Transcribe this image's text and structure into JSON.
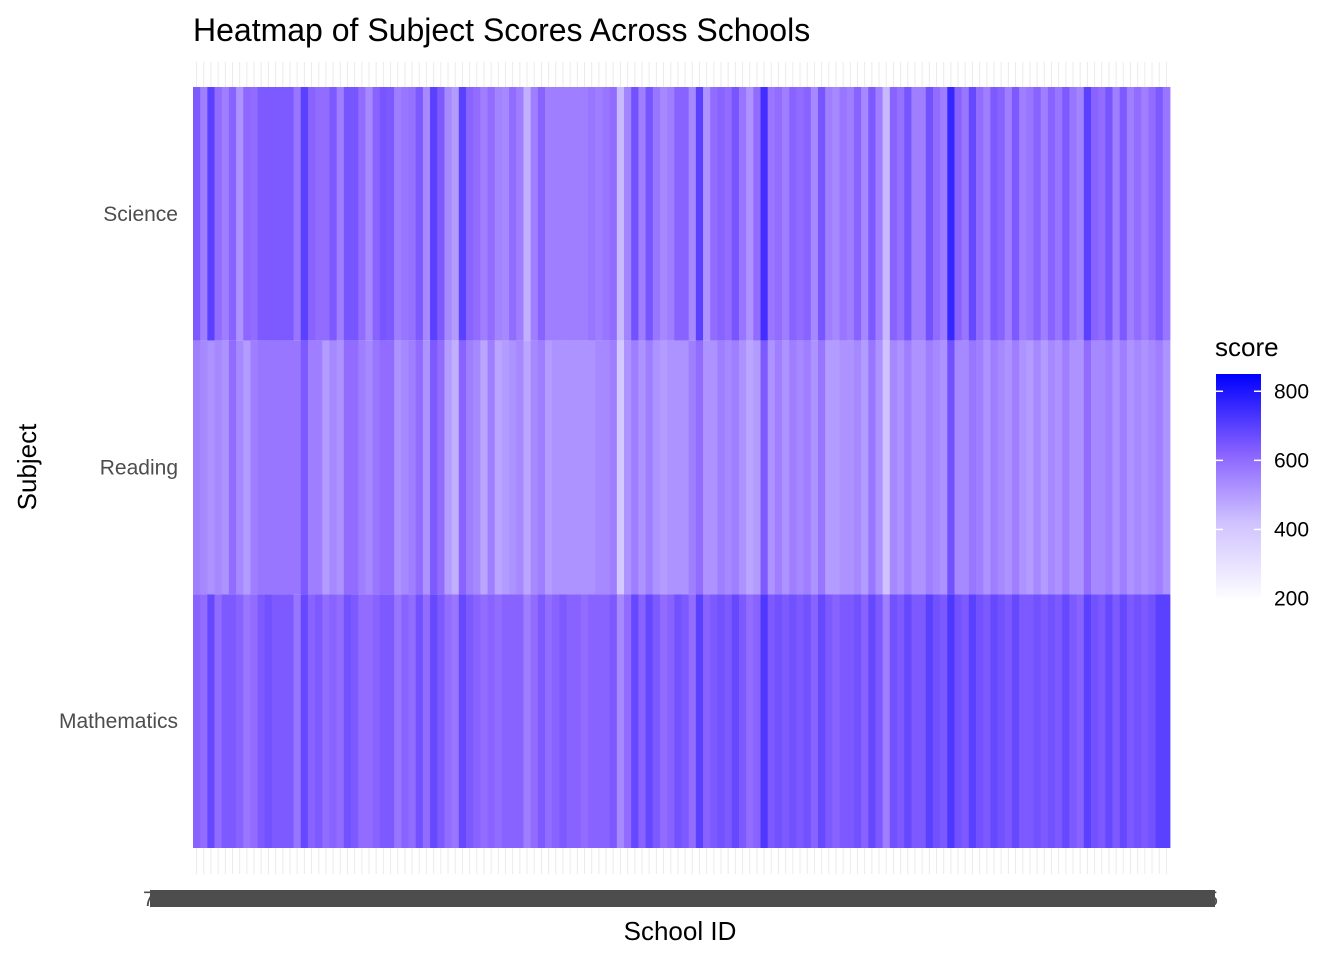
{
  "chart_data": {
    "type": "heatmap",
    "title": "Heatmap of Subject Scores Across Schools",
    "xlabel": "School ID",
    "ylabel": "Subject",
    "y_categories": [
      "Mathematics",
      "Reading",
      "Science"
    ],
    "x_categories_count": 136,
    "x_categories_first": "7",
    "x_categories_last": "05",
    "color_scale": {
      "low": "#ffffff",
      "high": "#0000ff",
      "min": 190,
      "max": 850
    },
    "legend": {
      "title": "score",
      "ticks": [
        200,
        400,
        600,
        800
      ],
      "position": "right"
    },
    "grid": true,
    "rows": {
      "Science": [
        640,
        560,
        700,
        600,
        560,
        620,
        520,
        610,
        600,
        640,
        640,
        640,
        640,
        640,
        580,
        700,
        620,
        600,
        600,
        640,
        560,
        650,
        650,
        600,
        540,
        620,
        650,
        640,
        560,
        580,
        590,
        640,
        540,
        700,
        640,
        540,
        500,
        700,
        620,
        600,
        560,
        600,
        550,
        540,
        600,
        560,
        460,
        560,
        620,
        560,
        560,
        560,
        560,
        560,
        560,
        580,
        560,
        580,
        600,
        440,
        550,
        660,
        560,
        650,
        580,
        540,
        560,
        620,
        620,
        540,
        700,
        520,
        600,
        620,
        600,
        650,
        580,
        520,
        600,
        740,
        580,
        600,
        560,
        620,
        600,
        620,
        540,
        650,
        560,
        540,
        580,
        560,
        620,
        540,
        640,
        560,
        440,
        620,
        590,
        650,
        560,
        560,
        660,
        600,
        560,
        760,
        620,
        580,
        680,
        600,
        560,
        640,
        620,
        560,
        640,
        560,
        580,
        620,
        560,
        620,
        580,
        640,
        580,
        550,
        700,
        620,
        600,
        650,
        560,
        640,
        560,
        600,
        560,
        600,
        640,
        580
      ],
      "Reading": [
        560,
        540,
        520,
        540,
        520,
        600,
        540,
        500,
        560,
        580,
        580,
        580,
        580,
        580,
        580,
        640,
        560,
        560,
        500,
        540,
        520,
        600,
        600,
        560,
        540,
        580,
        600,
        600,
        520,
        540,
        560,
        600,
        520,
        640,
        600,
        500,
        460,
        620,
        560,
        540,
        480,
        560,
        480,
        500,
        520,
        540,
        480,
        540,
        560,
        500,
        520,
        520,
        520,
        520,
        520,
        520,
        540,
        540,
        560,
        400,
        520,
        560,
        520,
        560,
        520,
        500,
        520,
        520,
        520,
        560,
        600,
        520,
        520,
        560,
        540,
        560,
        520,
        480,
        500,
        640,
        520,
        560,
        520,
        560,
        540,
        560,
        520,
        580,
        500,
        500,
        520,
        520,
        540,
        500,
        580,
        520,
        420,
        540,
        520,
        560,
        520,
        520,
        560,
        540,
        520,
        660,
        540,
        540,
        580,
        560,
        520,
        560,
        540,
        520,
        560,
        520,
        500,
        540,
        500,
        540,
        520,
        560,
        520,
        520,
        600,
        540,
        540,
        560,
        520,
        560,
        520,
        540,
        520,
        540,
        560,
        520
      ],
      "Mathematics": [
        620,
        600,
        680,
        600,
        640,
        640,
        620,
        580,
        600,
        640,
        660,
        640,
        640,
        640,
        580,
        680,
        620,
        640,
        600,
        620,
        600,
        660,
        640,
        600,
        600,
        620,
        640,
        640,
        580,
        620,
        600,
        660,
        600,
        680,
        640,
        600,
        580,
        680,
        640,
        620,
        600,
        620,
        600,
        620,
        620,
        620,
        560,
        600,
        640,
        600,
        620,
        640,
        620,
        620,
        600,
        620,
        620,
        620,
        640,
        540,
        600,
        680,
        620,
        680,
        640,
        600,
        620,
        660,
        640,
        600,
        700,
        620,
        640,
        660,
        640,
        680,
        640,
        600,
        620,
        720,
        640,
        660,
        640,
        660,
        640,
        660,
        620,
        680,
        640,
        620,
        640,
        640,
        660,
        620,
        680,
        640,
        560,
        660,
        640,
        680,
        640,
        640,
        700,
        660,
        640,
        720,
        660,
        640,
        700,
        660,
        640,
        680,
        660,
        640,
        680,
        640,
        640,
        660,
        640,
        660,
        640,
        680,
        640,
        620,
        700,
        660,
        640,
        680,
        640,
        680,
        640,
        660,
        640,
        660,
        700,
        700
      ]
    }
  }
}
